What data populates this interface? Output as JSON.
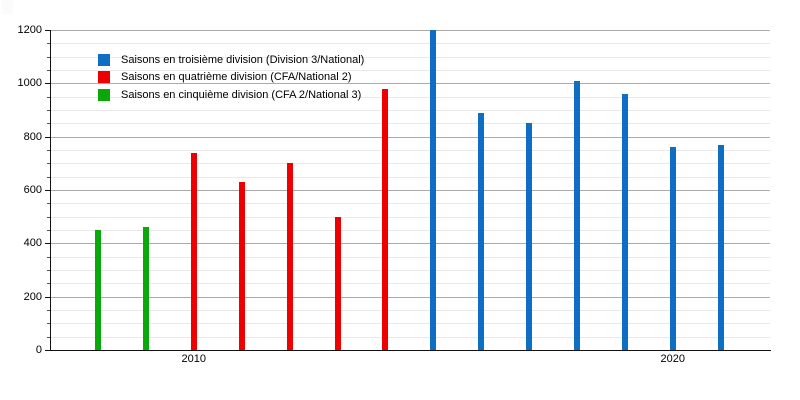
{
  "chart_data": {
    "type": "bar",
    "title": "",
    "xlabel": "",
    "ylabel": "",
    "ylim": [
      0,
      1200
    ],
    "grid": "major gray lines every 200, minor light lines every 50",
    "legend_position": "top-left inside plot",
    "x_start": 2008,
    "x": [
      2008,
      2009,
      2010,
      2011,
      2012,
      2013,
      2014,
      2015,
      2016,
      2017,
      2018,
      2019,
      2020,
      2021
    ],
    "series": [
      {
        "name": "Saisons en troisième division (Division 3/National)",
        "color": "#0d6ec3",
        "years": [
          2015,
          2016,
          2017,
          2018,
          2019,
          2020,
          2021
        ],
        "values": [
          1200,
          890,
          850,
          1010,
          960,
          760,
          770
        ]
      },
      {
        "name": "Saisons en quatrième division (CFA/National 2)",
        "color": "#ee0000",
        "years": [
          2010,
          2011,
          2012,
          2013,
          2014
        ],
        "values": [
          740,
          630,
          700,
          500,
          980
        ]
      },
      {
        "name": "Saisons en cinquième division (CFA 2/National 3)",
        "color": "#0ba80b",
        "years": [
          2008,
          2009
        ],
        "values": [
          450,
          460
        ]
      }
    ],
    "bars": [
      {
        "year": 2008,
        "value": 450,
        "series": 2
      },
      {
        "year": 2009,
        "value": 460,
        "series": 2
      },
      {
        "year": 2010,
        "value": 740,
        "series": 1
      },
      {
        "year": 2011,
        "value": 630,
        "series": 1
      },
      {
        "year": 2012,
        "value": 700,
        "series": 1
      },
      {
        "year": 2013,
        "value": 500,
        "series": 1
      },
      {
        "year": 2014,
        "value": 980,
        "series": 1
      },
      {
        "year": 2015,
        "value": 1200,
        "series": 0
      },
      {
        "year": 2016,
        "value": 890,
        "series": 0
      },
      {
        "year": 2017,
        "value": 850,
        "series": 0
      },
      {
        "year": 2018,
        "value": 1010,
        "series": 0
      },
      {
        "year": 2019,
        "value": 960,
        "series": 0
      },
      {
        "year": 2020,
        "value": 760,
        "series": 0
      },
      {
        "year": 2021,
        "value": 770,
        "series": 0
      }
    ],
    "y_axis": {
      "ticks": [
        1200,
        1000,
        800,
        600,
        400,
        200,
        0
      ],
      "major_step": 200,
      "minor_step": 50
    },
    "x_axis": {
      "tick_labels": [
        {
          "year": 2010,
          "label": "2010"
        },
        {
          "year": 2020,
          "label": "2020"
        }
      ]
    },
    "colors": {
      "major_grid": "#aaaaaa",
      "minor_grid": "#e9e9e9",
      "axis": "#111111",
      "background": "#ffffff"
    }
  }
}
